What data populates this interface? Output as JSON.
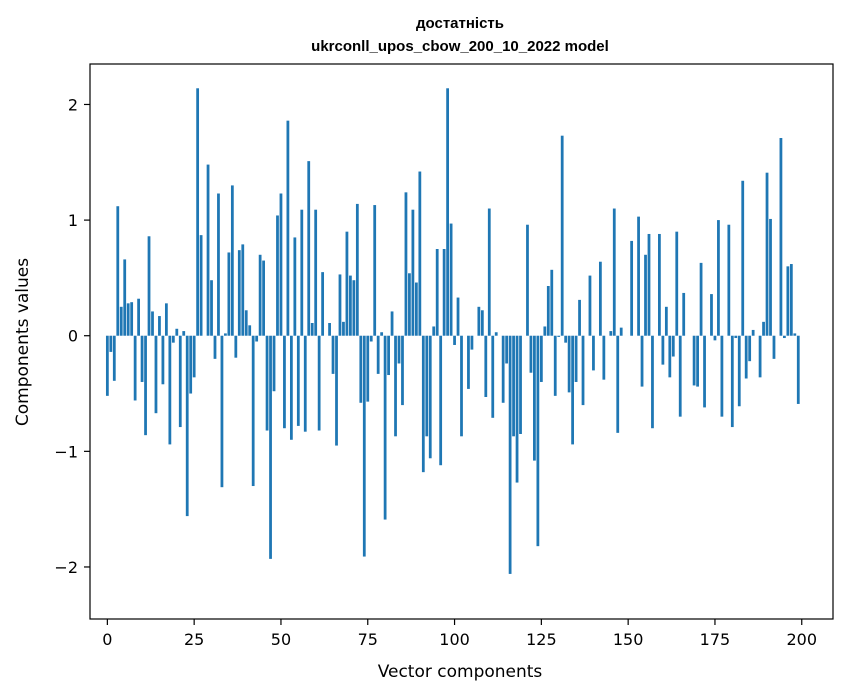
{
  "chart_data": {
    "type": "bar",
    "title_line1": "достатність",
    "title_line2": "ukrconll_upos_cbow_200_10_2022 model",
    "xlabel": "Vector components",
    "ylabel": "Components values",
    "xlim": [
      -5,
      209
    ],
    "ylim": [
      -2.45,
      2.35
    ],
    "xticks": [
      0,
      25,
      50,
      75,
      100,
      125,
      150,
      175,
      200
    ],
    "xtick_labels": [
      "0",
      "25",
      "50",
      "75",
      "100",
      "125",
      "150",
      "175",
      "200"
    ],
    "yticks": [
      -2,
      -1,
      0,
      1,
      2
    ],
    "ytick_labels": [
      "−2",
      "−1",
      "0",
      "1",
      "2"
    ],
    "grid": false,
    "bar_color": "#1f77b4",
    "values": [
      -0.52,
      -0.14,
      -0.39,
      1.12,
      0.25,
      0.66,
      0.28,
      0.29,
      -0.56,
      0.32,
      -0.4,
      -0.86,
      0.86,
      0.21,
      -0.67,
      0.17,
      -0.42,
      0.28,
      -0.94,
      -0.06,
      0.06,
      -0.79,
      0.04,
      -1.56,
      -0.5,
      -0.36,
      2.14,
      0.87,
      0.0,
      1.48,
      0.48,
      -0.2,
      1.23,
      -1.31,
      0.02,
      0.72,
      1.3,
      -0.19,
      0.74,
      0.79,
      0.22,
      0.09,
      -1.3,
      -0.05,
      0.7,
      0.65,
      -0.82,
      -1.93,
      -0.48,
      1.04,
      1.23,
      -0.8,
      1.86,
      -0.9,
      0.85,
      -0.78,
      1.09,
      -0.83,
      1.51,
      0.11,
      1.09,
      -0.82,
      0.55,
      0.0,
      0.11,
      -0.33,
      -0.95,
      0.53,
      0.12,
      0.9,
      0.52,
      0.48,
      1.14,
      -0.58,
      -1.91,
      -0.57,
      -0.05,
      1.13,
      -0.33,
      0.03,
      -1.59,
      -0.34,
      0.21,
      -0.87,
      -0.24,
      -0.6,
      1.24,
      0.54,
      1.09,
      0.46,
      1.42,
      -1.18,
      -0.87,
      -1.06,
      0.08,
      0.75,
      -1.12,
      0.75,
      2.14,
      0.97,
      -0.08,
      0.33,
      -0.87,
      0.0,
      -0.46,
      -0.12,
      0.0,
      0.25,
      0.22,
      -0.53,
      1.1,
      -0.71,
      0.03,
      0.0,
      -0.58,
      -0.24,
      -2.06,
      -0.87,
      -1.27,
      -0.85,
      0.0,
      0.96,
      -0.32,
      -1.08,
      -1.82,
      -0.4,
      0.08,
      0.43,
      0.57,
      -0.52,
      -0.01,
      1.73,
      -0.06,
      -0.49,
      -0.94,
      -0.4,
      0.31,
      -0.6,
      0.0,
      0.52,
      -0.3,
      0.0,
      0.64,
      -0.38,
      0.0,
      0.04,
      1.1,
      -0.84,
      0.07,
      0.0,
      0.0,
      0.82,
      0.0,
      1.03,
      -0.44,
      0.7,
      0.88,
      -0.8,
      0.0,
      0.88,
      -0.25,
      0.25,
      -0.36,
      -0.18,
      0.9,
      -0.7,
      0.37,
      0.0,
      0.0,
      -0.43,
      -0.44,
      0.63,
      -0.62,
      0.0,
      0.36,
      -0.04,
      1.0,
      -0.7,
      0.0,
      0.96,
      -0.79,
      -0.02,
      -0.61,
      1.34,
      -0.37,
      -0.22,
      0.05,
      0.0,
      -0.36,
      0.12,
      1.41,
      1.01,
      -0.2,
      0.0,
      1.71,
      -0.02,
      0.6,
      0.62,
      0.02,
      -0.59
    ]
  }
}
